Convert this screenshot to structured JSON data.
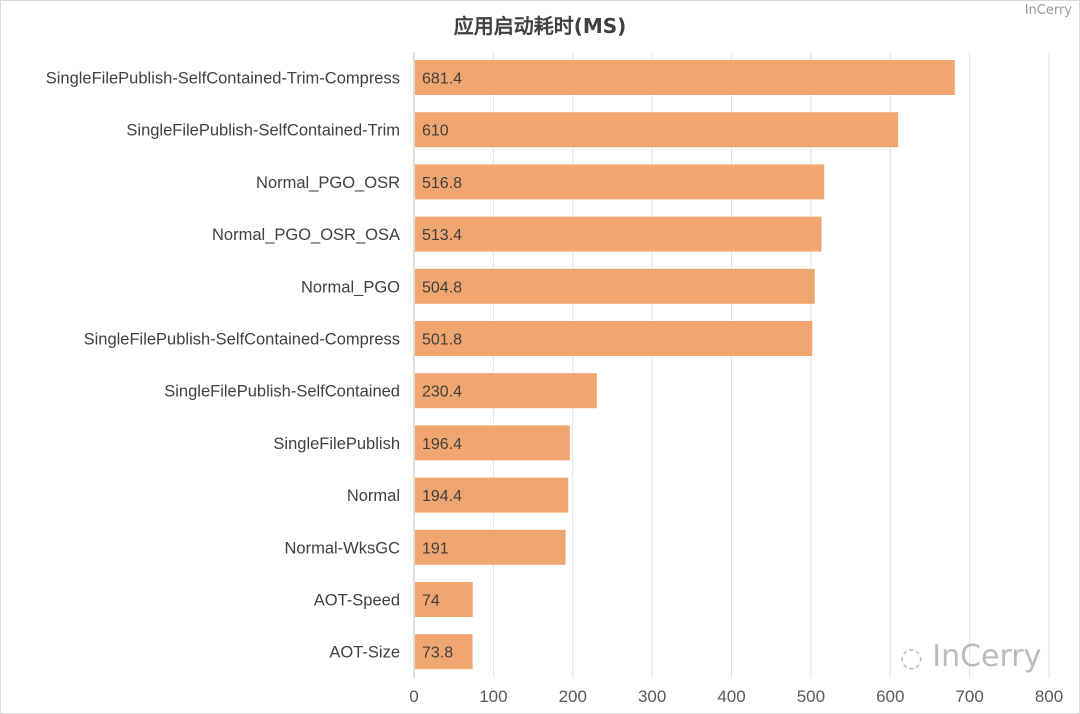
{
  "chart_data": {
    "type": "bar",
    "orientation": "horizontal",
    "title": "应用启动耗时(MS)",
    "categories": [
      "SingleFilePublish-SelfContained-Trim-Compress",
      "SingleFilePublish-SelfContained-Trim",
      "Normal_PGO_OSR",
      "Normal_PGO_OSR_OSA",
      "Normal_PGO",
      "SingleFilePublish-SelfContained-Compress",
      "SingleFilePublish-SelfContained",
      "SingleFilePublish",
      "Normal",
      "Normal-WksGC",
      "AOT-Speed",
      "AOT-Size"
    ],
    "values": [
      681.4,
      610,
      516.8,
      513.4,
      504.8,
      501.8,
      230.4,
      196.4,
      194.4,
      191,
      74,
      73.8
    ],
    "xlim": [
      0,
      800
    ],
    "xticks": [
      "0",
      "100",
      "200",
      "300",
      "400",
      "500",
      "600",
      "700",
      "800"
    ],
    "grid": true,
    "bar_color": "#F2A66F",
    "label_color": "#404040"
  },
  "watermark": {
    "text": "InCerry",
    "corner_text": "InCerry"
  }
}
